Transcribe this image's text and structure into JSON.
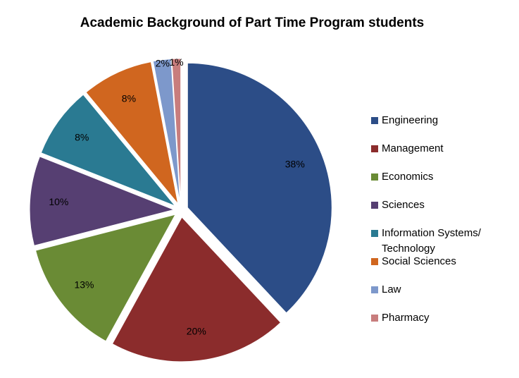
{
  "chart_data": {
    "type": "pie",
    "title": "Academic Background of Part Time Program students",
    "categories": [
      "Engineering",
      "Management",
      "Economics",
      "Sciences",
      "Information Systems/ Technology",
      "Social Sciences",
      "Law",
      "Pharmacy"
    ],
    "values": [
      38,
      20,
      13,
      10,
      8,
      8,
      2,
      1
    ],
    "value_labels": [
      "38%",
      "20%",
      "13%",
      "10%",
      "8%",
      "8%",
      "2%",
      "1%"
    ],
    "colors": [
      "#2c4d87",
      "#8b2c2c",
      "#6a8b35",
      "#563f72",
      "#2a7a92",
      "#d0661f",
      "#7d98cb",
      "#c87d7d"
    ],
    "legend": "right"
  }
}
